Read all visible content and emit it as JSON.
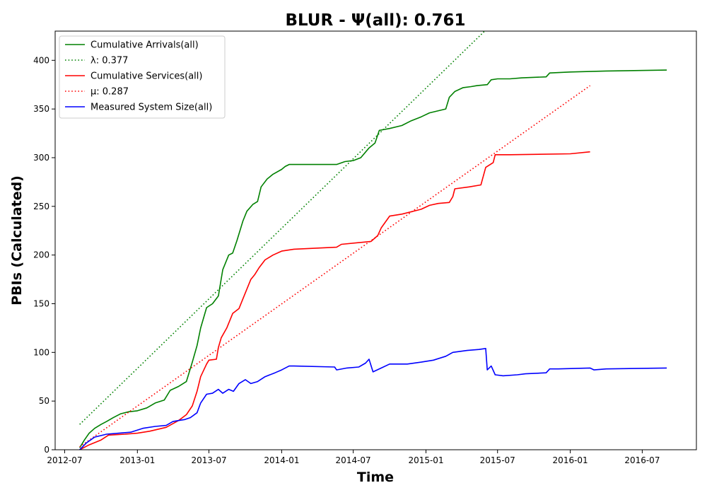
{
  "chart_data": {
    "type": "line",
    "title": "BLUR -  Ψ(all): 0.761",
    "xlabel": "Time",
    "ylabel": "PBIs (Calculated)",
    "x_axis_type": "date",
    "xlim": [
      "2012-06-07",
      "2016-11-15"
    ],
    "ylim": [
      0,
      430
    ],
    "x_ticks": [
      "2012-07",
      "2013-01",
      "2013-07",
      "2014-01",
      "2014-07",
      "2015-01",
      "2015-07",
      "2016-01",
      "2016-07"
    ],
    "y_ticks": [
      0,
      50,
      100,
      150,
      200,
      250,
      300,
      350,
      400
    ],
    "legend_position": "upper-left",
    "grid": false,
    "series": [
      {
        "name": "Cumulative Arrivals(all)",
        "color": "#008000",
        "style": "solid",
        "points": [
          [
            "2012-08-08",
            2
          ],
          [
            "2012-08-20",
            10
          ],
          [
            "2012-09-01",
            17
          ],
          [
            "2012-09-15",
            22
          ],
          [
            "2012-10-01",
            26
          ],
          [
            "2012-10-15",
            29
          ],
          [
            "2012-11-01",
            33
          ],
          [
            "2012-11-20",
            37
          ],
          [
            "2012-12-10",
            39
          ],
          [
            "2013-01-01",
            40
          ],
          [
            "2013-01-25",
            43
          ],
          [
            "2013-02-15",
            48
          ],
          [
            "2013-03-10",
            51
          ],
          [
            "2013-03-25",
            61
          ],
          [
            "2013-04-15",
            65
          ],
          [
            "2013-05-05",
            70
          ],
          [
            "2013-05-20",
            90
          ],
          [
            "2013-06-01",
            107
          ],
          [
            "2013-06-10",
            125
          ],
          [
            "2013-06-25",
            146
          ],
          [
            "2013-07-10",
            150
          ],
          [
            "2013-07-25",
            158
          ],
          [
            "2013-08-05",
            185
          ],
          [
            "2013-08-20",
            200
          ],
          [
            "2013-08-30",
            202
          ],
          [
            "2013-09-10",
            215
          ],
          [
            "2013-09-25",
            235
          ],
          [
            "2013-10-05",
            245
          ],
          [
            "2013-10-20",
            252
          ],
          [
            "2013-11-01",
            255
          ],
          [
            "2013-11-10",
            270
          ],
          [
            "2013-11-25",
            278
          ],
          [
            "2013-12-10",
            283
          ],
          [
            "2014-01-01",
            288
          ],
          [
            "2014-01-10",
            291
          ],
          [
            "2014-01-20",
            293
          ],
          [
            "2014-03-01",
            293
          ],
          [
            "2014-05-20",
            293
          ],
          [
            "2014-06-10",
            296
          ],
          [
            "2014-07-01",
            297
          ],
          [
            "2014-07-20",
            300
          ],
          [
            "2014-08-10",
            310
          ],
          [
            "2014-08-25",
            315
          ],
          [
            "2014-09-05",
            328
          ],
          [
            "2014-10-01",
            330
          ],
          [
            "2014-11-01",
            333
          ],
          [
            "2014-11-25",
            338
          ],
          [
            "2014-12-20",
            342
          ],
          [
            "2015-01-10",
            346
          ],
          [
            "2015-02-20",
            350
          ],
          [
            "2015-03-01",
            362
          ],
          [
            "2015-03-15",
            368
          ],
          [
            "2015-04-05",
            372
          ],
          [
            "2015-04-25",
            373
          ],
          [
            "2015-05-10",
            374
          ],
          [
            "2015-06-05",
            375
          ],
          [
            "2015-06-15",
            380
          ],
          [
            "2015-07-01",
            381
          ],
          [
            "2015-08-01",
            381
          ],
          [
            "2015-09-01",
            382
          ],
          [
            "2015-11-01",
            383
          ],
          [
            "2015-11-10",
            387
          ],
          [
            "2016-01-01",
            388
          ],
          [
            "2016-04-01",
            389
          ],
          [
            "2016-09-01",
            390
          ]
        ]
      },
      {
        "name": "λ: 0.377",
        "color": "#008000",
        "style": "dotted",
        "points": [
          [
            "2012-08-08",
            26
          ],
          [
            "2015-09-18",
            474
          ]
        ]
      },
      {
        "name": "Cumulative Services(all)",
        "color": "#ff0000",
        "style": "solid",
        "points": [
          [
            "2012-08-08",
            0
          ],
          [
            "2012-09-01",
            5
          ],
          [
            "2012-10-01",
            10
          ],
          [
            "2012-10-20",
            15
          ],
          [
            "2012-12-01",
            16
          ],
          [
            "2013-01-01",
            17
          ],
          [
            "2013-02-01",
            19
          ],
          [
            "2013-03-15",
            23
          ],
          [
            "2013-04-15",
            30
          ],
          [
            "2013-05-05",
            36
          ],
          [
            "2013-05-20",
            45
          ],
          [
            "2013-06-01",
            60
          ],
          [
            "2013-06-10",
            75
          ],
          [
            "2013-06-25",
            88
          ],
          [
            "2013-07-01",
            92
          ],
          [
            "2013-07-20",
            93
          ],
          [
            "2013-07-25",
            105
          ],
          [
            "2013-08-01",
            115
          ],
          [
            "2013-08-15",
            125
          ],
          [
            "2013-08-30",
            140
          ],
          [
            "2013-09-15",
            145
          ],
          [
            "2013-09-25",
            155
          ],
          [
            "2013-10-05",
            165
          ],
          [
            "2013-10-15",
            175
          ],
          [
            "2013-10-25",
            180
          ],
          [
            "2013-11-05",
            187
          ],
          [
            "2013-11-20",
            195
          ],
          [
            "2013-12-10",
            200
          ],
          [
            "2014-01-01",
            204
          ],
          [
            "2014-02-01",
            206
          ],
          [
            "2014-05-20",
            208
          ],
          [
            "2014-06-01",
            211
          ],
          [
            "2014-08-15",
            214
          ],
          [
            "2014-09-01",
            220
          ],
          [
            "2014-09-10",
            228
          ],
          [
            "2014-10-01",
            240
          ],
          [
            "2014-11-01",
            242
          ],
          [
            "2014-12-20",
            247
          ],
          [
            "2015-01-10",
            251
          ],
          [
            "2015-02-01",
            253
          ],
          [
            "2015-03-01",
            254
          ],
          [
            "2015-03-10",
            260
          ],
          [
            "2015-03-15",
            268
          ],
          [
            "2015-04-20",
            270
          ],
          [
            "2015-05-20",
            272
          ],
          [
            "2015-06-01",
            290
          ],
          [
            "2015-06-20",
            295
          ],
          [
            "2015-06-25",
            303
          ],
          [
            "2015-08-01",
            303
          ],
          [
            "2016-01-01",
            304
          ],
          [
            "2016-02-20",
            306
          ]
        ]
      },
      {
        "name": "μ: 0.287",
        "color": "#ff0000",
        "style": "dotted",
        "points": [
          [
            "2012-08-08",
            3
          ],
          [
            "2016-02-20",
            374
          ]
        ]
      },
      {
        "name": "Measured System Size(all)",
        "color": "#0000ff",
        "style": "solid",
        "points": [
          [
            "2012-08-08",
            0
          ],
          [
            "2012-08-25",
            7
          ],
          [
            "2012-09-15",
            13
          ],
          [
            "2012-10-15",
            16
          ],
          [
            "2012-11-15",
            17
          ],
          [
            "2012-12-15",
            18
          ],
          [
            "2013-01-15",
            22
          ],
          [
            "2013-02-15",
            24
          ],
          [
            "2013-03-15",
            25
          ],
          [
            "2013-04-01",
            29
          ],
          [
            "2013-04-15",
            30
          ],
          [
            "2013-05-01",
            31
          ],
          [
            "2013-05-15",
            33
          ],
          [
            "2013-06-01",
            38
          ],
          [
            "2013-06-10",
            48
          ],
          [
            "2013-06-25",
            57
          ],
          [
            "2013-07-10",
            58
          ],
          [
            "2013-07-25",
            62
          ],
          [
            "2013-08-05",
            58
          ],
          [
            "2013-08-20",
            62
          ],
          [
            "2013-09-01",
            60
          ],
          [
            "2013-09-15",
            68
          ],
          [
            "2013-10-01",
            72
          ],
          [
            "2013-10-15",
            68
          ],
          [
            "2013-11-01",
            70
          ],
          [
            "2013-11-20",
            75
          ],
          [
            "2013-12-15",
            79
          ],
          [
            "2014-01-01",
            82
          ],
          [
            "2014-01-20",
            86
          ],
          [
            "2014-02-01",
            86
          ],
          [
            "2014-05-15",
            85
          ],
          [
            "2014-05-20",
            82
          ],
          [
            "2014-06-15",
            84
          ],
          [
            "2014-07-15",
            85
          ],
          [
            "2014-08-01",
            89
          ],
          [
            "2014-08-10",
            93
          ],
          [
            "2014-08-20",
            80
          ],
          [
            "2014-09-10",
            84
          ],
          [
            "2014-10-01",
            88
          ],
          [
            "2014-11-15",
            88
          ],
          [
            "2014-12-20",
            90
          ],
          [
            "2015-01-20",
            92
          ],
          [
            "2015-02-20",
            96
          ],
          [
            "2015-03-10",
            100
          ],
          [
            "2015-04-15",
            102
          ],
          [
            "2015-05-15",
            103
          ],
          [
            "2015-06-01",
            104
          ],
          [
            "2015-06-05",
            82
          ],
          [
            "2015-06-15",
            86
          ],
          [
            "2015-06-25",
            77
          ],
          [
            "2015-07-15",
            76
          ],
          [
            "2015-08-20",
            77
          ],
          [
            "2015-09-10",
            78
          ],
          [
            "2015-11-01",
            79
          ],
          [
            "2015-11-10",
            83
          ],
          [
            "2015-12-01",
            83
          ],
          [
            "2016-02-20",
            84
          ],
          [
            "2016-03-01",
            82
          ],
          [
            "2016-04-01",
            83
          ],
          [
            "2016-09-01",
            84
          ]
        ]
      }
    ]
  }
}
